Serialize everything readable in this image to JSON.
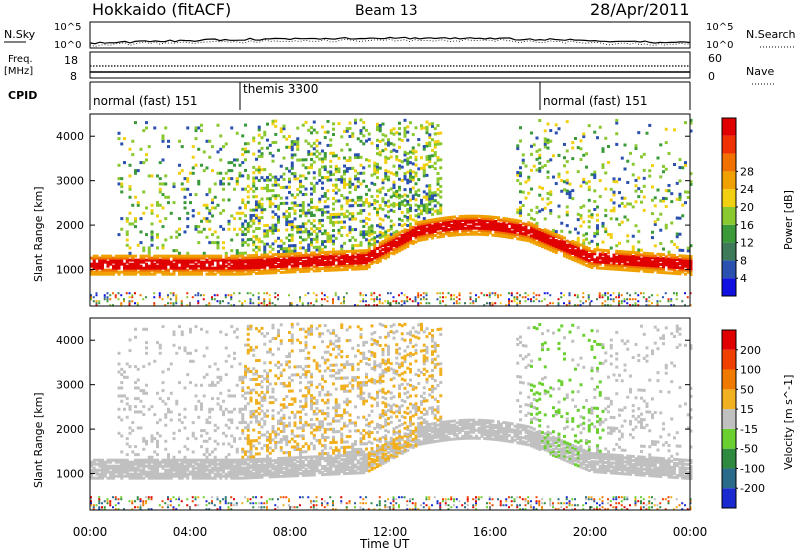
{
  "header": {
    "station": "Hokkaido (fitACF)",
    "beam": "Beam 13",
    "date": "28/Apr/2011"
  },
  "noise_panel": {
    "left_label": "N.Sky",
    "right_label": "N.Search",
    "left_ticks": [
      "10^5",
      "10^0"
    ],
    "right_ticks": [
      "10^5",
      "10^0"
    ]
  },
  "freq_panel": {
    "left_label_line1": "Freq.",
    "left_label_line2": "[MHz]",
    "left_ticks": [
      "18",
      "8"
    ],
    "right_ticks": [
      "60",
      "0"
    ],
    "right_label": "Nave"
  },
  "cpid_panel": {
    "label": "CPID",
    "segments": [
      {
        "name": "normal (fast) 151",
        "start_h": 0,
        "end_h": 6
      },
      {
        "name": "themis 3300",
        "start_h": 6,
        "end_h": 18
      },
      {
        "name": "normal (fast) 151",
        "start_h": 18,
        "end_h": 24
      }
    ]
  },
  "chart_data": [
    {
      "type": "heatmap",
      "title": "Power",
      "ylabel": "Slant Range [km]",
      "xlabel": "Time UT",
      "xlim_hours": [
        0,
        24
      ],
      "ylim_km": [
        180,
        4500
      ],
      "y_ticks": [
        1000,
        2000,
        3000,
        4000
      ],
      "colorbar": {
        "label": "Power [dB]",
        "ticks": [
          "4",
          "8",
          "12",
          "16",
          "20",
          "24",
          "28"
        ],
        "colors": [
          "#1010e0",
          "#2a50b0",
          "#3c7a5a",
          "#3a9a3a",
          "#8ac830",
          "#f0d010",
          "#f0a000",
          "#f07000",
          "#f03000",
          "#e00000"
        ]
      }
    },
    {
      "type": "heatmap",
      "title": "Velocity",
      "ylabel": "Slant Range [km]",
      "xlabel": "Time UT",
      "xlim_hours": [
        0,
        24
      ],
      "ylim_km": [
        180,
        4500
      ],
      "y_ticks": [
        1000,
        2000,
        3000,
        4000
      ],
      "colorbar": {
        "label": "Velocity [m s^-1]",
        "ticks": [
          "200",
          "100",
          "50",
          "15",
          "-15",
          "-50",
          "-100",
          "-200"
        ],
        "colors": [
          "#1a2ad0",
          "#2a6a8a",
          "#2e8a3e",
          "#6ad030",
          "#c0c0c0",
          "#f0b020",
          "#f07a00",
          "#f04000",
          "#e00000"
        ]
      }
    }
  ],
  "x_axis": {
    "ticks": [
      "00:00",
      "04:00",
      "08:00",
      "12:00",
      "16:00",
      "20:00",
      "00:00"
    ],
    "label": "Time UT"
  }
}
